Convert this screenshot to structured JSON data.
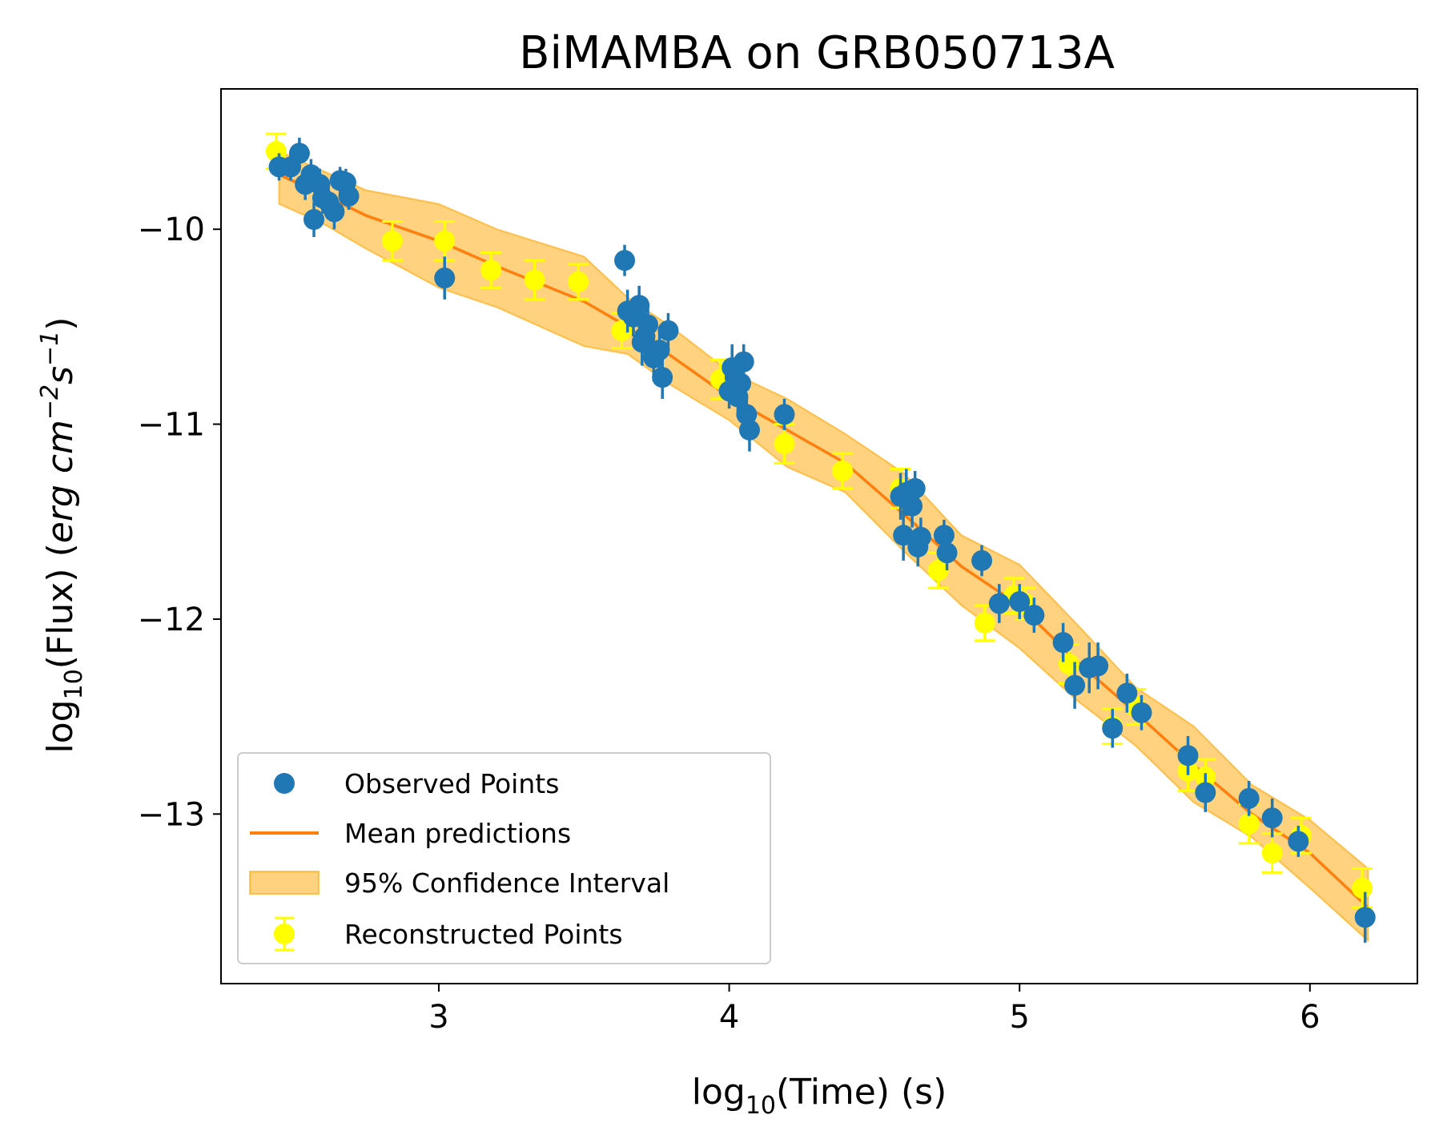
{
  "chart_data": {
    "type": "scatter",
    "title": "BiMAMBA on GRB050713A",
    "xlabel": {
      "prefix": "log",
      "sub": "10",
      "suffix": "(Time) (s)"
    },
    "ylabel": {
      "prefix": "log",
      "sub": "10",
      "middle": "(Flux) (",
      "unit_main": "erg cm",
      "sup1": "−2",
      "unit_s": "s",
      "sup2": "−1",
      "close": ")"
    },
    "xlim": [
      2.25,
      6.37
    ],
    "ylim": [
      -13.87,
      -9.28
    ],
    "xticks": [
      3,
      4,
      5,
      6
    ],
    "xtick_labels": [
      "3",
      "4",
      "5",
      "6"
    ],
    "yticks": [
      -10,
      -11,
      -12,
      -13
    ],
    "ytick_labels": [
      "−10",
      "−11",
      "−12",
      "−13"
    ],
    "legend": {
      "position": "lower-left",
      "entries": [
        "Observed Points",
        "Mean predictions",
        "95% Confidence Interval",
        "Reconstructed Points"
      ]
    },
    "colors": {
      "observed": "#1f77b4",
      "mean": "#ff7f0e",
      "ci_fill": "#ffa500",
      "reconstructed": "#ffff00"
    },
    "confidence_interval": {
      "x": [
        2.45,
        2.6,
        2.75,
        3.0,
        3.2,
        3.5,
        3.65,
        3.8,
        4.0,
        4.2,
        4.4,
        4.6,
        4.8,
        5.0,
        5.2,
        5.4,
        5.6,
        5.8,
        6.0,
        6.2
      ],
      "upper": [
        -9.6,
        -9.7,
        -9.8,
        -9.87,
        -10.0,
        -10.14,
        -10.35,
        -10.5,
        -10.73,
        -10.87,
        -11.05,
        -11.25,
        -11.57,
        -11.72,
        -12.03,
        -12.35,
        -12.55,
        -12.85,
        -13.03,
        -13.28
      ],
      "lower": [
        -9.87,
        -9.97,
        -10.1,
        -10.3,
        -10.4,
        -10.6,
        -10.64,
        -10.8,
        -10.98,
        -11.22,
        -11.35,
        -11.65,
        -11.93,
        -12.15,
        -12.42,
        -12.65,
        -12.94,
        -13.12,
        -13.38,
        -13.65
      ]
    },
    "mean_prediction": {
      "x": [
        2.45,
        2.6,
        2.75,
        3.0,
        3.2,
        3.5,
        3.65,
        3.8,
        4.0,
        4.2,
        4.4,
        4.6,
        4.8,
        5.0,
        5.2,
        5.4,
        5.6,
        5.8,
        6.0,
        6.2
      ],
      "y": [
        -9.72,
        -9.82,
        -9.93,
        -10.06,
        -10.19,
        -10.37,
        -10.5,
        -10.65,
        -10.86,
        -11.03,
        -11.2,
        -11.46,
        -11.73,
        -11.93,
        -12.22,
        -12.48,
        -12.75,
        -13.0,
        -13.2,
        -13.48
      ]
    },
    "reconstructed_points": {
      "x": [
        2.44,
        2.84,
        3.02,
        3.18,
        3.33,
        3.48,
        3.63,
        3.97,
        4.19,
        4.39,
        4.59,
        4.72,
        4.88,
        4.98,
        5.02,
        5.17,
        5.32,
        5.4,
        5.58,
        5.64,
        5.79,
        5.87,
        5.97,
        6.18
      ],
      "y": [
        -9.6,
        -10.06,
        -10.06,
        -10.21,
        -10.26,
        -10.27,
        -10.52,
        -10.77,
        -11.1,
        -11.24,
        -11.33,
        -11.75,
        -12.02,
        -11.88,
        -11.92,
        -12.23,
        -12.55,
        -12.45,
        -12.78,
        -12.81,
        -13.05,
        -13.2,
        -13.11,
        -13.38
      ],
      "err": [
        0.09,
        0.1,
        0.1,
        0.09,
        0.1,
        0.09,
        0.09,
        0.1,
        0.1,
        0.09,
        0.1,
        0.09,
        0.09,
        0.09,
        0.08,
        0.1,
        0.09,
        0.09,
        0.1,
        0.09,
        0.1,
        0.1,
        0.09,
        0.1
      ]
    },
    "observed_points": {
      "x": [
        2.45,
        2.49,
        2.52,
        2.54,
        2.56,
        2.57,
        2.59,
        2.6,
        2.62,
        2.64,
        2.66,
        2.68,
        2.69,
        3.02,
        3.64,
        3.65,
        3.67,
        3.69,
        3.7,
        3.71,
        3.72,
        3.74,
        3.76,
        3.77,
        3.79,
        4.0,
        4.01,
        4.02,
        4.03,
        4.04,
        4.05,
        4.06,
        4.07,
        4.19,
        4.59,
        4.6,
        4.61,
        4.63,
        4.64,
        4.65,
        4.66,
        4.74,
        4.75,
        4.87,
        4.93,
        5.0,
        5.05,
        5.15,
        5.19,
        5.24,
        5.27,
        5.32,
        5.37,
        5.42,
        5.58,
        5.64,
        5.79,
        5.87,
        5.96,
        6.19
      ],
      "y": [
        -9.68,
        -9.68,
        -9.61,
        -9.77,
        -9.72,
        -9.95,
        -9.77,
        -9.84,
        -9.86,
        -9.91,
        -9.75,
        -9.76,
        -9.83,
        -10.25,
        -10.16,
        -10.42,
        -10.45,
        -10.39,
        -10.58,
        -10.55,
        -10.49,
        -10.66,
        -10.62,
        -10.76,
        -10.52,
        -10.83,
        -10.71,
        -10.76,
        -10.86,
        -10.79,
        -10.68,
        -10.95,
        -11.03,
        -10.95,
        -11.37,
        -11.57,
        -11.35,
        -11.42,
        -11.33,
        -11.63,
        -11.58,
        -11.57,
        -11.66,
        -11.7,
        -11.92,
        -11.91,
        -11.98,
        -12.12,
        -12.34,
        -12.25,
        -12.24,
        -12.56,
        -12.38,
        -12.48,
        -12.7,
        -12.89,
        -12.92,
        -13.02,
        -13.14,
        -13.53
      ],
      "err": [
        0.07,
        0.07,
        0.08,
        0.08,
        0.08,
        0.09,
        0.08,
        0.08,
        0.09,
        0.09,
        0.07,
        0.07,
        0.07,
        0.11,
        0.08,
        0.11,
        0.1,
        0.1,
        0.12,
        0.12,
        0.09,
        0.12,
        0.12,
        0.11,
        0.09,
        0.09,
        0.12,
        0.1,
        0.1,
        0.1,
        0.09,
        0.1,
        0.11,
        0.08,
        0.12,
        0.13,
        0.12,
        0.11,
        0.09,
        0.1,
        0.1,
        0.08,
        0.09,
        0.08,
        0.1,
        0.09,
        0.09,
        0.1,
        0.12,
        0.13,
        0.12,
        0.1,
        0.1,
        0.09,
        0.1,
        0.1,
        0.09,
        0.1,
        0.08,
        0.13
      ]
    }
  }
}
